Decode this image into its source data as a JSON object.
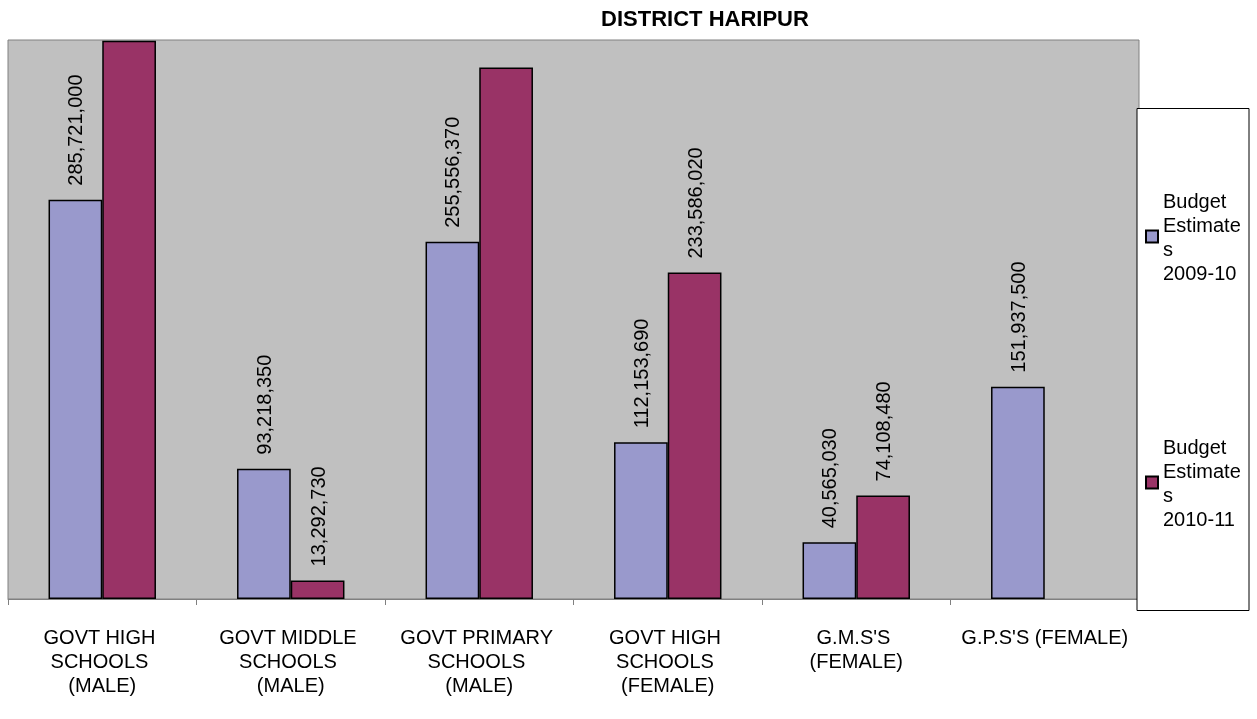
{
  "chart_data": {
    "type": "bar",
    "title": "DISTRICT HARIPUR",
    "categories": [
      "GOVT HIGH SCHOOLS (MALE)",
      "GOVT MIDDLE SCHOOLS (MALE)",
      "GOVT PRIMARY SCHOOLS (MALE)",
      "GOVT HIGH SCHOOLS (FEMALE)",
      "G.M.S'S (FEMALE)",
      "G.P.S'S (FEMALE)"
    ],
    "series": [
      {
        "name": "Budget Estimates 2009-10",
        "color": "#9999cc",
        "values": [
          285721000,
          93218350,
          255556370,
          112153690,
          40565030,
          151937500
        ],
        "value_labels": [
          "285,721,000",
          "93,218,350",
          "255,556,370",
          "112,153,690",
          "40,565,030",
          "151,937,500"
        ]
      },
      {
        "name": "Budget Estimates 2010-11",
        "color": "#993366",
        "values": [
          399500000,
          13292730,
          380400000,
          233586020,
          74108480,
          null
        ],
        "value_labels": [
          null,
          "13,292,730",
          null,
          "233,586,020",
          "74,108,480",
          null
        ]
      }
    ],
    "legend": "right"
  }
}
